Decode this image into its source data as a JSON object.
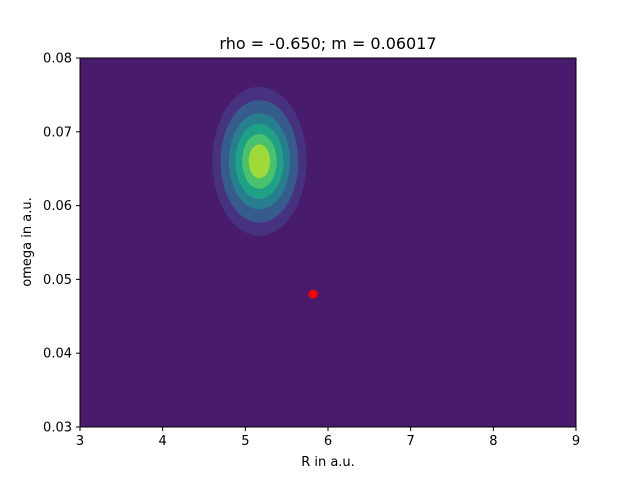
{
  "chart_data": {
    "type": "contour",
    "title": "rho = -0.650;  m = 0.06017",
    "xlabel": "R in a.u.",
    "ylabel": "omega in a.u.",
    "xlim": [
      3,
      9
    ],
    "ylim": [
      0.03,
      0.08
    ],
    "xticks": [
      "3",
      "4",
      "5",
      "6",
      "7",
      "8",
      "9"
    ],
    "yticks": [
      "0.03",
      "0.04",
      "0.05",
      "0.06",
      "0.07",
      "0.08"
    ],
    "grid": false,
    "background_color": "#481b6d",
    "contour_field": {
      "shape": "gaussian-peak",
      "center": [
        5.17,
        0.066
      ],
      "level_colors": [
        "#481b6d",
        "#46327e",
        "#365c8d",
        "#277f8e",
        "#1fa187",
        "#4ac16d",
        "#a0da39",
        "#d2e21b"
      ],
      "level_extents": [
        {
          "x": [
            4.6,
            5.74
          ],
          "y": [
            0.0559,
            0.0761
          ]
        },
        {
          "x": [
            4.7,
            5.64
          ],
          "y": [
            0.0577,
            0.0743
          ]
        },
        {
          "x": [
            4.8,
            5.54
          ],
          "y": [
            0.0595,
            0.0725
          ]
        },
        {
          "x": [
            4.88,
            5.46
          ],
          "y": [
            0.0609,
            0.0711
          ]
        },
        {
          "x": [
            4.96,
            5.38
          ],
          "y": [
            0.0623,
            0.0697
          ]
        },
        {
          "x": [
            5.04,
            5.3
          ],
          "y": [
            0.0637,
            0.0683
          ]
        }
      ]
    },
    "marker": {
      "x": 5.82,
      "y": 0.048,
      "color": "#ff0000"
    }
  }
}
